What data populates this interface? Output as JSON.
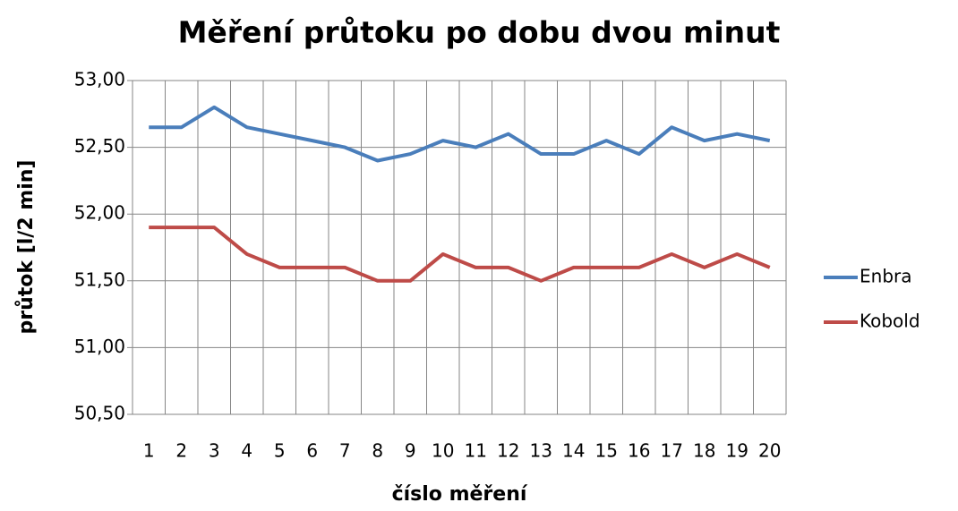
{
  "chart_data": {
    "type": "line",
    "title": "Měření průtoku po dobu dvou minut",
    "x_label": "číslo měření",
    "y_label": "průtok [l/2 min]",
    "categories": [
      "1",
      "2",
      "3",
      "4",
      "5",
      "6",
      "7",
      "8",
      "9",
      "10",
      "11",
      "12",
      "13",
      "14",
      "15",
      "16",
      "17",
      "18",
      "19",
      "20"
    ],
    "series": [
      {
        "name": "Enbra",
        "color": "#4a7ebb",
        "values": [
          52.65,
          52.65,
          52.8,
          52.65,
          52.6,
          52.55,
          52.5,
          52.4,
          52.45,
          52.55,
          52.5,
          52.6,
          52.45,
          52.45,
          52.55,
          52.45,
          52.65,
          52.55,
          52.6,
          52.55
        ]
      },
      {
        "name": "Kobold",
        "color": "#be4b48",
        "values": [
          51.9,
          51.9,
          51.9,
          51.7,
          51.6,
          51.6,
          51.6,
          51.5,
          51.5,
          51.7,
          51.6,
          51.6,
          51.5,
          51.6,
          51.6,
          51.6,
          51.7,
          51.6,
          51.7,
          51.6
        ]
      }
    ],
    "ylim": [
      50.5,
      53
    ],
    "yticks": [
      {
        "value": 50.5,
        "label": "50,50"
      },
      {
        "value": 51,
        "label": "51,00"
      },
      {
        "value": 51.5,
        "label": "51,50"
      },
      {
        "value": 52,
        "label": "52,00"
      },
      {
        "value": 52.5,
        "label": "52,50"
      },
      {
        "value": 53,
        "label": "53,00"
      }
    ],
    "grid": true,
    "legend": "right"
  }
}
